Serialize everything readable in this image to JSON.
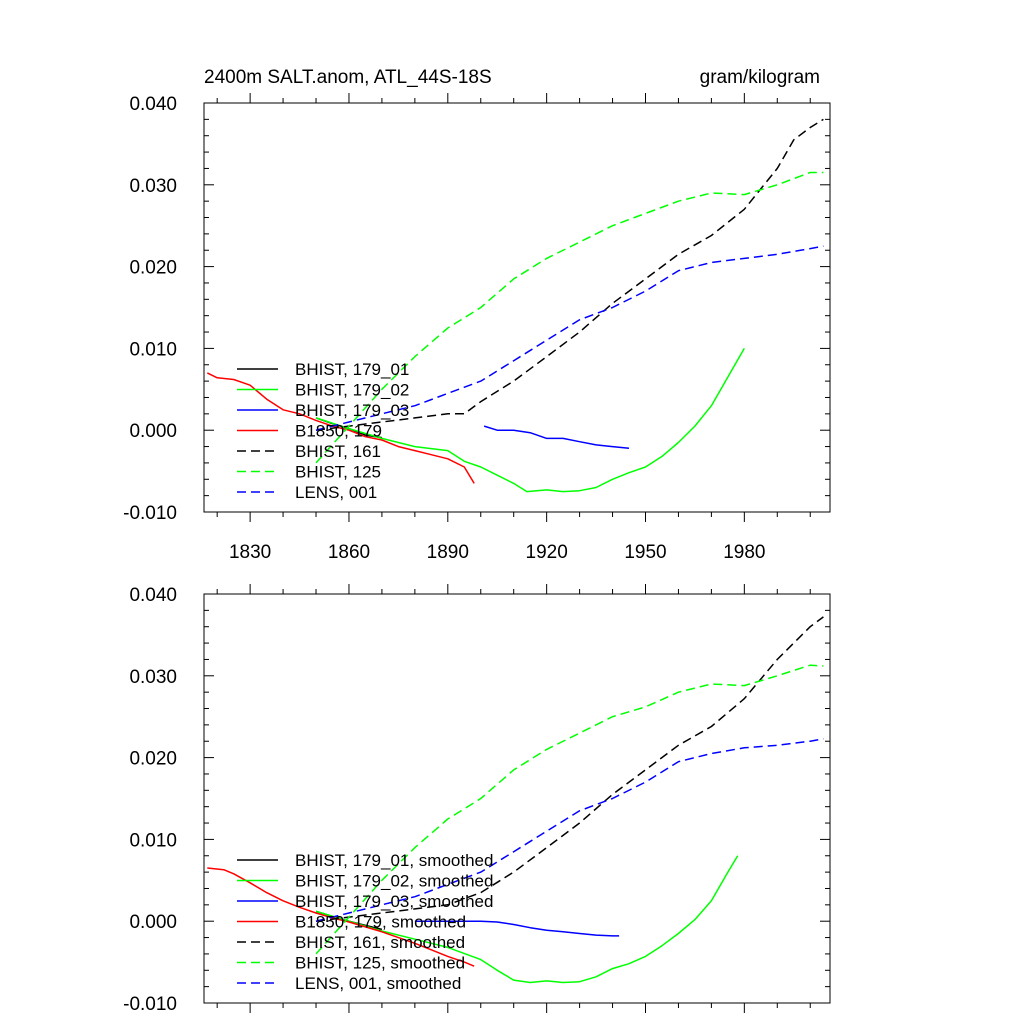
{
  "page": {
    "left_title": "2400m SALT.anom, ATL_44S-18S",
    "right_title": "gram/kilogram"
  },
  "chart_data": [
    {
      "type": "line",
      "title": "2400m SALT.anom, ATL_44S-18S",
      "units": "gram/kilogram",
      "xlim": [
        1816,
        2006
      ],
      "ylim": [
        -0.01,
        0.04
      ],
      "xticks": [
        1830,
        1860,
        1890,
        1920,
        1950,
        1980
      ],
      "xtick_labels": [
        "1830",
        "1860",
        "1890",
        "1920",
        "1950",
        "1980"
      ],
      "yticks": [
        -0.01,
        0.0,
        0.01,
        0.02,
        0.03,
        0.04
      ],
      "ytick_labels": [
        "-0.010",
        "0.000",
        "0.010",
        "0.020",
        "0.030",
        "0.040"
      ],
      "legend_position": "bottom-left",
      "series": [
        {
          "name": "BHIST, 179_01",
          "color": "#000000",
          "dash": "solid",
          "x": [
            1850,
            1855,
            1860,
            1865,
            1870
          ],
          "y": [
            0.0015,
            0.0008,
            0.0002,
            -0.0006,
            -0.0009
          ]
        },
        {
          "name": "BHIST, 179_02",
          "color": "#00ff00",
          "dash": "solid",
          "x": [
            1850,
            1860,
            1870,
            1880,
            1890,
            1895,
            1900,
            1905,
            1910,
            1914,
            1920,
            1925,
            1930,
            1935,
            1940,
            1945,
            1950,
            1955,
            1960,
            1965,
            1970,
            1975,
            1980
          ],
          "y": [
            0.0015,
            0.0002,
            -0.001,
            -0.002,
            -0.0025,
            -0.0038,
            -0.0045,
            -0.0055,
            -0.0065,
            -0.0075,
            -0.0073,
            -0.0075,
            -0.0074,
            -0.007,
            -0.006,
            -0.0052,
            -0.0045,
            -0.0032,
            -0.0015,
            0.0005,
            0.003,
            0.0065,
            0.01
          ]
        },
        {
          "name": "BHIST, 179_03",
          "color": "#0000ff",
          "dash": "solid",
          "x": [
            1901,
            1905,
            1910,
            1915,
            1920,
            1925,
            1930,
            1935,
            1940,
            1945
          ],
          "y": [
            0.0005,
            0.0,
            0.0,
            -0.0003,
            -0.001,
            -0.001,
            -0.0014,
            -0.0018,
            -0.002,
            -0.0022
          ]
        },
        {
          "name": "B1850, 179",
          "color": "#ff0000",
          "dash": "solid",
          "x": [
            1817,
            1820,
            1825,
            1830,
            1835,
            1840,
            1845,
            1850,
            1855,
            1860,
            1865,
            1870,
            1875,
            1880,
            1885,
            1890,
            1895,
            1898
          ],
          "y": [
            0.007,
            0.0064,
            0.0062,
            0.0055,
            0.0038,
            0.0025,
            0.002,
            0.0012,
            0.0005,
            0.0,
            -0.0008,
            -0.0012,
            -0.002,
            -0.0025,
            -0.003,
            -0.0035,
            -0.0045,
            -0.0065
          ]
        },
        {
          "name": "BHIST, 161",
          "color": "#000000",
          "dash": "dashed",
          "x": [
            1850,
            1860,
            1870,
            1880,
            1890,
            1895,
            1900,
            1910,
            1920,
            1930,
            1940,
            1950,
            1960,
            1970,
            1980,
            1990,
            1995,
            2000,
            2004
          ],
          "y": [
            0.0,
            0.0005,
            0.001,
            0.0015,
            0.002,
            0.002,
            0.0035,
            0.006,
            0.009,
            0.012,
            0.0155,
            0.0185,
            0.0215,
            0.0238,
            0.027,
            0.032,
            0.0355,
            0.037,
            0.038
          ]
        },
        {
          "name": "BHIST, 125",
          "color": "#00ff00",
          "dash": "dashed",
          "x": [
            1850,
            1860,
            1870,
            1880,
            1890,
            1900,
            1910,
            1920,
            1930,
            1940,
            1950,
            1960,
            1970,
            1980,
            1990,
            2000,
            2004
          ],
          "y": [
            -0.004,
            0.0005,
            0.005,
            0.009,
            0.0125,
            0.015,
            0.0185,
            0.021,
            0.023,
            0.025,
            0.0265,
            0.028,
            0.029,
            0.0288,
            0.03,
            0.0315,
            0.0315
          ]
        },
        {
          "name": "LENS, 001",
          "color": "#0000ff",
          "dash": "dashed",
          "x": [
            1850,
            1860,
            1870,
            1880,
            1890,
            1900,
            1910,
            1920,
            1930,
            1940,
            1950,
            1960,
            1970,
            1980,
            1990,
            2000,
            2004
          ],
          "y": [
            0.0,
            0.001,
            0.002,
            0.003,
            0.0045,
            0.006,
            0.0085,
            0.011,
            0.0135,
            0.015,
            0.017,
            0.0195,
            0.0205,
            0.021,
            0.0215,
            0.0222,
            0.0225
          ]
        }
      ]
    },
    {
      "type": "line",
      "xlim": [
        1816,
        2006
      ],
      "ylim": [
        -0.01,
        0.04
      ],
      "xticks": [
        1830,
        1860,
        1890,
        1920,
        1950,
        1980
      ],
      "yticks": [
        -0.01,
        0.0,
        0.01,
        0.02,
        0.03,
        0.04
      ],
      "ytick_labels": [
        "-0.010",
        "0.000",
        "0.010",
        "0.020",
        "0.030",
        "0.040"
      ],
      "legend_position": "bottom-left",
      "series": [
        {
          "name": "BHIST, 179_01, smoothed",
          "color": "#000000",
          "dash": "solid",
          "x": [
            1850,
            1855,
            1860,
            1865,
            1870
          ],
          "y": [
            0.0012,
            0.0006,
            0.0,
            -0.0005,
            -0.001
          ]
        },
        {
          "name": "BHIST, 179_02, smoothed",
          "color": "#00ff00",
          "dash": "solid",
          "x": [
            1850,
            1860,
            1870,
            1880,
            1890,
            1900,
            1905,
            1910,
            1915,
            1920,
            1925,
            1930,
            1935,
            1940,
            1945,
            1950,
            1955,
            1960,
            1965,
            1970,
            1975,
            1978
          ],
          "y": [
            0.0012,
            0.0,
            -0.0012,
            -0.0022,
            -0.0032,
            -0.0047,
            -0.006,
            -0.0072,
            -0.0075,
            -0.0073,
            -0.0075,
            -0.0074,
            -0.0068,
            -0.0058,
            -0.0052,
            -0.0043,
            -0.003,
            -0.0015,
            0.0002,
            0.0025,
            0.006,
            0.008
          ]
        },
        {
          "name": "BHIST, 179_03, smoothed",
          "color": "#0000ff",
          "dash": "solid",
          "x": [
            1880,
            1890,
            1900,
            1905,
            1910,
            1915,
            1920,
            1925,
            1930,
            1935,
            1940,
            1942
          ],
          "y": [
            0.0,
            0.0,
            0.0,
            -0.0001,
            -0.0004,
            -0.0008,
            -0.0011,
            -0.0013,
            -0.0015,
            -0.0017,
            -0.0018,
            -0.0018
          ]
        },
        {
          "name": "B1850, 179, smoothed",
          "color": "#ff0000",
          "dash": "solid",
          "x": [
            1817,
            1822,
            1825,
            1830,
            1835,
            1840,
            1845,
            1850,
            1855,
            1860,
            1865,
            1870,
            1875,
            1880,
            1885,
            1890,
            1895,
            1898
          ],
          "y": [
            0.0065,
            0.0063,
            0.0058,
            0.0047,
            0.0035,
            0.0025,
            0.0017,
            0.001,
            0.0004,
            -0.0001,
            -0.0007,
            -0.0013,
            -0.002,
            -0.0027,
            -0.0035,
            -0.0043,
            -0.005,
            -0.0055
          ]
        },
        {
          "name": "BHIST, 161, smoothed",
          "color": "#000000",
          "dash": "dashed",
          "x": [
            1850,
            1860,
            1870,
            1880,
            1890,
            1900,
            1910,
            1920,
            1930,
            1940,
            1950,
            1960,
            1970,
            1980,
            1990,
            2000,
            2004
          ],
          "y": [
            0.0,
            0.0005,
            0.001,
            0.0015,
            0.002,
            0.0035,
            0.006,
            0.009,
            0.012,
            0.0155,
            0.0185,
            0.0215,
            0.0238,
            0.0272,
            0.032,
            0.036,
            0.0372
          ]
        },
        {
          "name": "BHIST, 125, smoothed",
          "color": "#00ff00",
          "dash": "dashed",
          "x": [
            1850,
            1860,
            1870,
            1880,
            1890,
            1900,
            1910,
            1920,
            1930,
            1940,
            1950,
            1960,
            1970,
            1980,
            1990,
            2000,
            2004
          ],
          "y": [
            -0.004,
            0.0005,
            0.005,
            0.009,
            0.0125,
            0.015,
            0.0185,
            0.021,
            0.023,
            0.025,
            0.0262,
            0.028,
            0.029,
            0.0288,
            0.03,
            0.0313,
            0.0312
          ]
        },
        {
          "name": "LENS, 001, smoothed",
          "color": "#0000ff",
          "dash": "dashed",
          "x": [
            1850,
            1860,
            1870,
            1880,
            1890,
            1900,
            1910,
            1920,
            1930,
            1940,
            1950,
            1960,
            1970,
            1980,
            1990,
            2000,
            2004
          ],
          "y": [
            0.0,
            0.001,
            0.002,
            0.003,
            0.0045,
            0.006,
            0.0085,
            0.011,
            0.0135,
            0.015,
            0.017,
            0.0195,
            0.0205,
            0.0212,
            0.0215,
            0.022,
            0.0223
          ]
        }
      ]
    }
  ]
}
